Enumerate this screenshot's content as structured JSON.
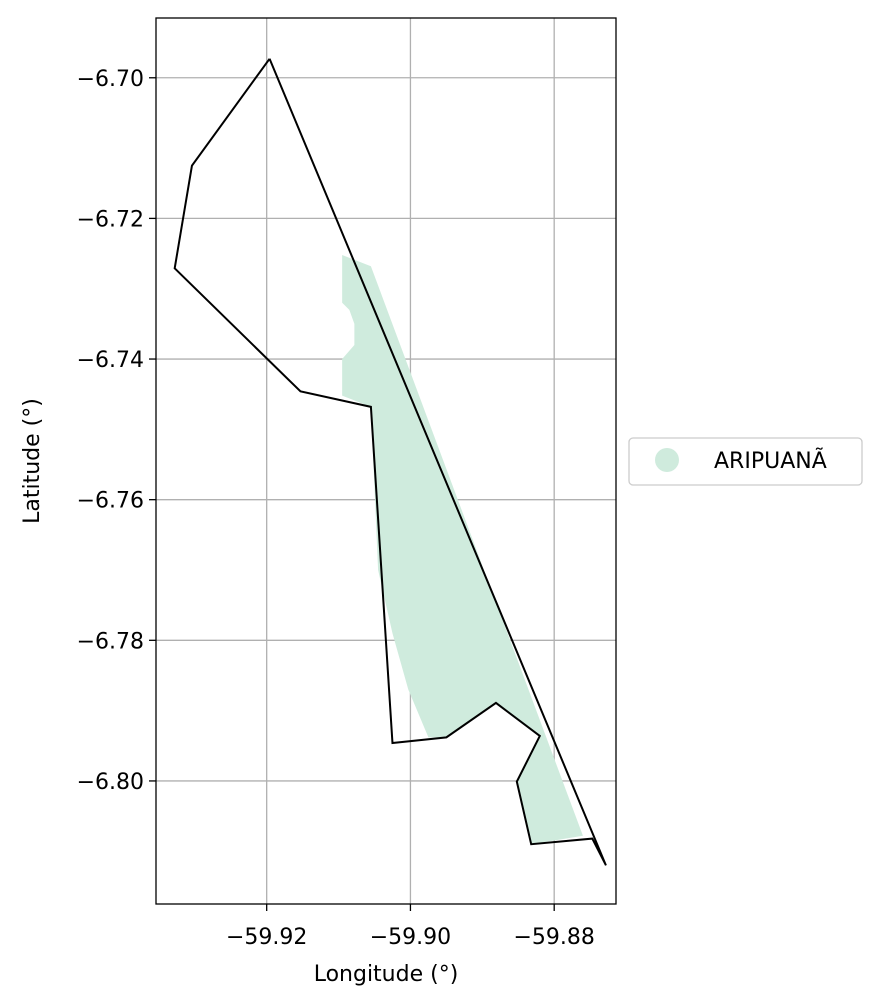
{
  "chart_data": {
    "type": "map",
    "title": "",
    "xlabel": "Longitude (°)",
    "ylabel": "Latitude (°)",
    "xlim": [
      -59.9354,
      -59.8714
    ],
    "ylim": [
      -6.8175,
      -6.6915
    ],
    "grid": true,
    "x_ticks": [
      -59.92,
      -59.9,
      -59.88
    ],
    "x_tick_labels": [
      "−59.92",
      "−59.90",
      "−59.88"
    ],
    "y_ticks": [
      -6.7,
      -6.72,
      -6.74,
      -6.76,
      -6.78,
      -6.8
    ],
    "y_tick_labels": [
      "−6.70",
      "−6.72",
      "−6.74",
      "−6.76",
      "−6.78",
      "−6.80"
    ],
    "legend": {
      "placement": "center-right-outside",
      "entries": [
        {
          "label": "ARIPUANÃ",
          "color": "#cfebdd"
        }
      ]
    },
    "boundary": {
      "stroke_color": "#000000",
      "points": [
        [
          -59.9196,
          -6.6973
        ],
        [
          -59.9304,
          -6.7125
        ],
        [
          -59.9328,
          -6.7271
        ],
        [
          -59.9153,
          -6.7446
        ],
        [
          -59.9055,
          -6.7468
        ],
        [
          -59.9025,
          -6.7946
        ],
        [
          -59.895,
          -6.7938
        ],
        [
          -59.8881,
          -6.7889
        ],
        [
          -59.882,
          -6.7936
        ],
        [
          -59.8852,
          -6.8001
        ],
        [
          -59.8832,
          -6.809
        ],
        [
          -59.8747,
          -6.8082
        ],
        [
          -59.8728,
          -6.812
        ],
        [
          -59.9196,
          -6.6973
        ]
      ]
    },
    "filled_region": {
      "name": "ARIPUANÃ",
      "color": "#cfebdd",
      "points": [
        [
          -59.9095,
          -6.7252
        ],
        [
          -59.9055,
          -6.7268
        ],
        [
          -59.876,
          -6.8078
        ],
        [
          -59.8832,
          -6.809
        ],
        [
          -59.8852,
          -6.8001
        ],
        [
          -59.882,
          -6.7936
        ],
        [
          -59.8881,
          -6.7889
        ],
        [
          -59.895,
          -6.7938
        ],
        [
          -59.8975,
          -6.7938
        ],
        [
          -59.9003,
          -6.787
        ],
        [
          -59.9025,
          -6.779
        ],
        [
          -59.9045,
          -6.77
        ],
        [
          -59.9055,
          -6.7468
        ],
        [
          -59.9095,
          -6.7452
        ],
        [
          -59.9095,
          -6.74
        ],
        [
          -59.9078,
          -6.738
        ],
        [
          -59.9078,
          -6.735
        ],
        [
          -59.9085,
          -6.733
        ],
        [
          -59.9095,
          -6.732
        ],
        [
          -59.9095,
          -6.7252
        ]
      ]
    }
  }
}
